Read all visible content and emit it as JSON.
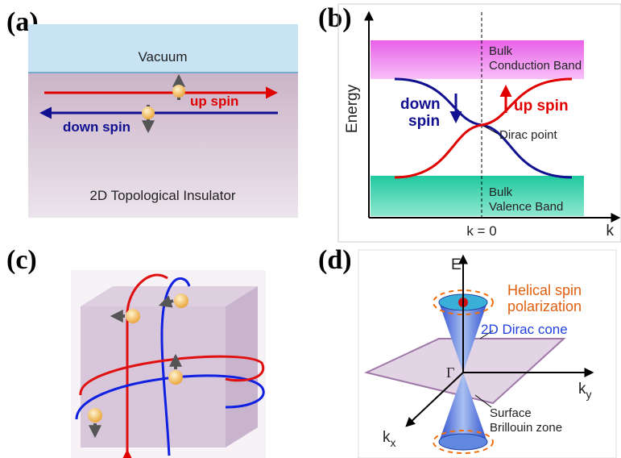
{
  "panels": {
    "a": {
      "label": "(a)",
      "vacuum": "Vacuum",
      "up_spin": "up spin",
      "down_spin": "down spin",
      "material": "2D Topological Insulator"
    },
    "b": {
      "label": "(b)",
      "y_axis": "Energy",
      "x_axis": "k",
      "k_zero": "k = 0",
      "conduction": [
        "Bulk",
        "Conduction Band"
      ],
      "valence": [
        "Bulk",
        "Valence Band"
      ],
      "down_spin": [
        "down",
        "spin"
      ],
      "up_spin": "up spin",
      "dirac_point": "Dirac point"
    },
    "c": {
      "label": "(c)"
    },
    "d": {
      "label": "(d)",
      "e_axis": "E",
      "helical": [
        "Helical spin",
        "polarization"
      ],
      "cone": "2D Dirac cone",
      "gamma": "Γ",
      "ky": {
        "base": "k",
        "sub": "y"
      },
      "kx": {
        "base": "k",
        "sub": "x"
      },
      "zone": [
        "Surface",
        "Brillouin zone"
      ]
    }
  }
}
